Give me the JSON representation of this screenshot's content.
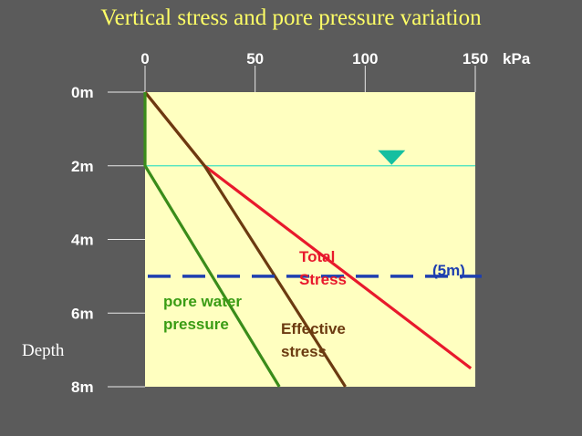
{
  "chart_data": {
    "type": "line",
    "title": "Vertical stress and pore pressure variation",
    "xunit": "kPa",
    "ylabel": "Depth",
    "xlim": [
      0,
      150
    ],
    "ylim": [
      0,
      8
    ],
    "x_ticks": [
      0,
      50,
      100,
      150
    ],
    "x_tick_labels": [
      "0",
      "50",
      "100",
      "150"
    ],
    "y_ticks": [
      0,
      2,
      4,
      6,
      8
    ],
    "y_tick_labels": [
      "0m",
      "2m",
      "4m",
      "6m",
      "8m"
    ],
    "water_table_depth": 2,
    "reference_depth": 5,
    "reference_label": "(5m)",
    "series": [
      {
        "name": "Total Stress",
        "label_lines": [
          "Total",
          "Stress"
        ],
        "color": "#e8192c",
        "points": [
          [
            0,
            0
          ],
          [
            27,
            2
          ],
          [
            148,
            7.5
          ]
        ]
      },
      {
        "name": "Effective stress",
        "label_lines": [
          "Effective",
          "stress"
        ],
        "color": "#6b3a10",
        "points": [
          [
            0,
            0
          ],
          [
            27,
            2
          ],
          [
            91,
            8
          ]
        ]
      },
      {
        "name": "pore water pressure",
        "label_lines": [
          "pore water",
          "pressure"
        ],
        "color": "#3a8c1a",
        "points": [
          [
            0,
            0
          ],
          [
            0,
            2
          ],
          [
            61,
            8
          ]
        ]
      }
    ],
    "annotation_colors": {
      "Total Stress": "#e8192c",
      "Effective stress": "#6b3a10",
      "pore water pressure": "#3a9c14",
      "reference": "#1e3fb0"
    },
    "plot_background": "#ffffc0",
    "water_table_color": "#3fe0c0"
  }
}
